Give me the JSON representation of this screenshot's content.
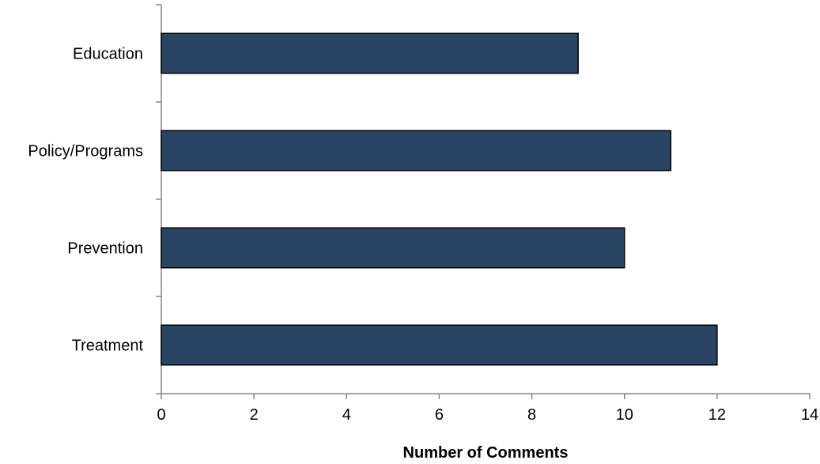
{
  "chart_data": {
    "type": "bar",
    "orientation": "horizontal",
    "title": "",
    "categories": [
      "Education",
      "Policy/Programs",
      "Prevention",
      "Treatment"
    ],
    "values": [
      9,
      11,
      10,
      12
    ],
    "xlabel": "Number of Comments",
    "ylabel": "",
    "xlim": [
      0,
      14
    ],
    "xticks": [
      0,
      2,
      4,
      6,
      8,
      10,
      12,
      14
    ],
    "grid": false,
    "legend": "none",
    "bar_color": "#2a4464",
    "bar_edge_color": "#000000",
    "axis_color": "#868686"
  }
}
